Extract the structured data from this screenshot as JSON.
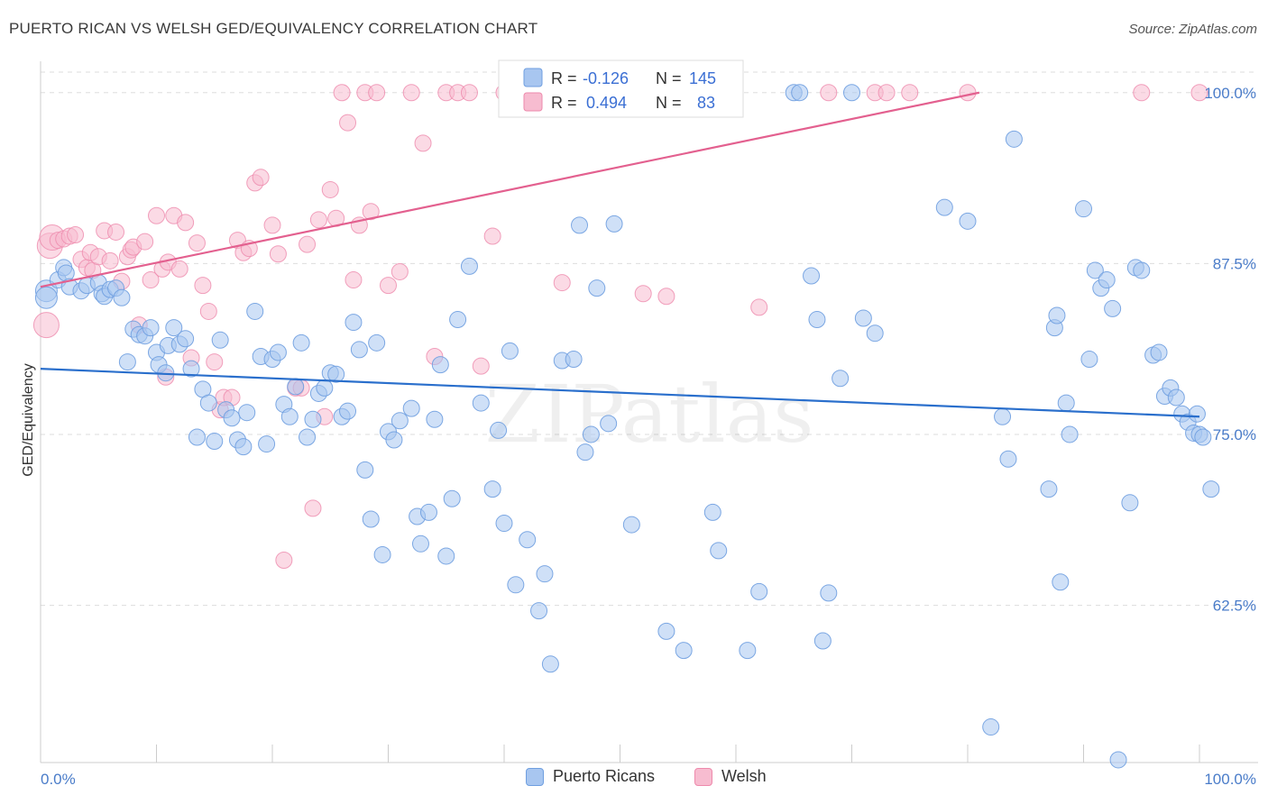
{
  "title": "PUERTO RICAN VS WELSH GED/EQUIVALENCY CORRELATION CHART",
  "source": "Source: ZipAtlas.com",
  "watermark": "ZIPatlas",
  "colors": {
    "blue_fill": "#a8c6f0",
    "blue_stroke": "#6f9fe0",
    "blue_line": "#2a6fcc",
    "pink_fill": "#f7bcd0",
    "pink_stroke": "#ee8aac",
    "pink_line": "#e3608f",
    "tick_text": "#4a7cc9",
    "grid": "#dddddd"
  },
  "legend_box": {
    "rows": [
      {
        "r_label": "R =",
        "r_value": "-0.126",
        "n_label": "N =",
        "n_value": "145"
      },
      {
        "r_label": "R =",
        "r_value": "0.494",
        "n_label": "N =",
        "n_value": "83"
      }
    ]
  },
  "bottom_legend": {
    "series_a": "Puerto Ricans",
    "series_b": "Welsh"
  },
  "chart_data": {
    "type": "scatter",
    "title": "PUERTO RICAN VS WELSH GED/EQUIVALENCY CORRELATION CHART",
    "xlabel": "",
    "ylabel": "GED/Equivalency",
    "xlim": [
      0,
      100
    ],
    "ylim": [
      51,
      101.5
    ],
    "x_tick_labels": [
      "0.0%",
      "100.0%"
    ],
    "y_ticks": [
      62.5,
      75.0,
      87.5,
      100.0
    ],
    "y_tick_labels": [
      "62.5%",
      "75.0%",
      "87.5%",
      "100.0%"
    ],
    "grid": true,
    "legend_position": "top-center",
    "series": [
      {
        "name": "Puerto Ricans",
        "r": -0.126,
        "n": 145,
        "trend": {
          "x": [
            0,
            100
          ],
          "y": [
            79.8,
            76.3
          ]
        },
        "points": [
          [
            0.5,
            85.5
          ],
          [
            0.5,
            85
          ],
          [
            1.5,
            86.3
          ],
          [
            2,
            87.2
          ],
          [
            2.2,
            86.8
          ],
          [
            2.5,
            85.8
          ],
          [
            3.5,
            85.5
          ],
          [
            4,
            85.9
          ],
          [
            5,
            86.1
          ],
          [
            5.3,
            85.3
          ],
          [
            5.5,
            85.1
          ],
          [
            6,
            85.6
          ],
          [
            6.5,
            85.7
          ],
          [
            7,
            85
          ],
          [
            7.5,
            80.3
          ],
          [
            8,
            82.7
          ],
          [
            8.5,
            82.3
          ],
          [
            9,
            82.2
          ],
          [
            9.5,
            82.8
          ],
          [
            10,
            81
          ],
          [
            10.2,
            80.1
          ],
          [
            10.8,
            79.5
          ],
          [
            11,
            81.5
          ],
          [
            11.5,
            82.8
          ],
          [
            12,
            81.6
          ],
          [
            12.5,
            82
          ],
          [
            13,
            79.8
          ],
          [
            13.5,
            74.8
          ],
          [
            14,
            78.3
          ],
          [
            14.5,
            77.3
          ],
          [
            15,
            74.5
          ],
          [
            15.5,
            81.9
          ],
          [
            16,
            76.8
          ],
          [
            16.5,
            76.2
          ],
          [
            17,
            74.6
          ],
          [
            17.5,
            74.1
          ],
          [
            17.8,
            76.6
          ],
          [
            18.5,
            84
          ],
          [
            19,
            80.7
          ],
          [
            19.5,
            74.3
          ],
          [
            20,
            80.5
          ],
          [
            20.5,
            81
          ],
          [
            21,
            77.2
          ],
          [
            21.5,
            76.3
          ],
          [
            22,
            78.5
          ],
          [
            22.5,
            81.7
          ],
          [
            23,
            74.8
          ],
          [
            23.5,
            76.1
          ],
          [
            24,
            78
          ],
          [
            24.5,
            78.4
          ],
          [
            25,
            79.5
          ],
          [
            25.5,
            79.4
          ],
          [
            26,
            76.3
          ],
          [
            26.5,
            76.7
          ],
          [
            27,
            83.2
          ],
          [
            27.5,
            81.2
          ],
          [
            28,
            72.4
          ],
          [
            28.5,
            68.8
          ],
          [
            29,
            81.7
          ],
          [
            29.5,
            66.2
          ],
          [
            30,
            75.2
          ],
          [
            30.5,
            74.6
          ],
          [
            31,
            76
          ],
          [
            32,
            76.9
          ],
          [
            32.5,
            69
          ],
          [
            32.8,
            67
          ],
          [
            33.5,
            69.3
          ],
          [
            34,
            76.1
          ],
          [
            34.5,
            80.1
          ],
          [
            35,
            66.1
          ],
          [
            35.5,
            70.3
          ],
          [
            36,
            83.4
          ],
          [
            37,
            87.3
          ],
          [
            38,
            77.3
          ],
          [
            39,
            71
          ],
          [
            39.5,
            75.3
          ],
          [
            40,
            68.5
          ],
          [
            40.5,
            81.1
          ],
          [
            41,
            64
          ],
          [
            42,
            67.3
          ],
          [
            43,
            62.1
          ],
          [
            43.5,
            64.8
          ],
          [
            44,
            58.2
          ],
          [
            45,
            80.4
          ],
          [
            46,
            80.5
          ],
          [
            46.5,
            90.3
          ],
          [
            47,
            73.7
          ],
          [
            47.5,
            75
          ],
          [
            48,
            85.7
          ],
          [
            49,
            75.8
          ],
          [
            49.5,
            90.4
          ],
          [
            51,
            68.4
          ],
          [
            54,
            60.6
          ],
          [
            55.5,
            59.2
          ],
          [
            57,
            100
          ],
          [
            58,
            69.3
          ],
          [
            58.5,
            66.5
          ],
          [
            61,
            59.2
          ],
          [
            62,
            63.5
          ],
          [
            65,
            100
          ],
          [
            65.5,
            100
          ],
          [
            66.5,
            86.6
          ],
          [
            67,
            83.4
          ],
          [
            67.5,
            59.9
          ],
          [
            68,
            63.4
          ],
          [
            69,
            79.1
          ],
          [
            70,
            100
          ],
          [
            71,
            83.5
          ],
          [
            72,
            82.4
          ],
          [
            78,
            91.6
          ],
          [
            80,
            90.6
          ],
          [
            82,
            53.6
          ],
          [
            83,
            76.3
          ],
          [
            83.5,
            73.2
          ],
          [
            84,
            96.6
          ],
          [
            87,
            71
          ],
          [
            87.5,
            82.8
          ],
          [
            87.7,
            83.7
          ],
          [
            88,
            64.2
          ],
          [
            88.5,
            77.3
          ],
          [
            88.8,
            75
          ],
          [
            90,
            91.5
          ],
          [
            90.5,
            80.5
          ],
          [
            91,
            87
          ],
          [
            91.5,
            85.7
          ],
          [
            92,
            86.3
          ],
          [
            92.5,
            84.2
          ],
          [
            93,
            51.2
          ],
          [
            94,
            70
          ],
          [
            94.5,
            87.2
          ],
          [
            95,
            87
          ],
          [
            96,
            80.8
          ],
          [
            96.5,
            81
          ],
          [
            97,
            77.8
          ],
          [
            97.5,
            78.4
          ],
          [
            98,
            77.7
          ],
          [
            98.5,
            76.5
          ],
          [
            99,
            75.9
          ],
          [
            99.5,
            75.1
          ],
          [
            99.8,
            76.5
          ],
          [
            100,
            75
          ],
          [
            100.3,
            74.8
          ],
          [
            101,
            71
          ]
        ]
      },
      {
        "name": "Welsh",
        "r": 0.494,
        "n": 83,
        "trend": {
          "x": [
            0,
            81
          ],
          "y": [
            85.8,
            100
          ]
        },
        "points": [
          [
            0.5,
            83
          ],
          [
            0.8,
            88.8
          ],
          [
            1,
            89.4
          ],
          [
            1.5,
            89.2
          ],
          [
            2,
            89.3
          ],
          [
            2.5,
            89.5
          ],
          [
            3,
            89.6
          ],
          [
            3.5,
            87.8
          ],
          [
            4,
            87.2
          ],
          [
            4.3,
            88.3
          ],
          [
            4.5,
            87
          ],
          [
            5,
            88
          ],
          [
            5.5,
            89.9
          ],
          [
            6,
            87.7
          ],
          [
            6.5,
            89.8
          ],
          [
            7,
            86.2
          ],
          [
            7.5,
            88
          ],
          [
            7.8,
            88.5
          ],
          [
            8,
            88.7
          ],
          [
            8.5,
            83
          ],
          [
            9,
            89.1
          ],
          [
            9.5,
            86.3
          ],
          [
            10,
            91
          ],
          [
            10.5,
            87.1
          ],
          [
            10.8,
            79.2
          ],
          [
            11,
            87.6
          ],
          [
            11.5,
            91
          ],
          [
            12,
            87.1
          ],
          [
            12.5,
            90.5
          ],
          [
            13,
            80.6
          ],
          [
            13.5,
            89
          ],
          [
            14,
            85.9
          ],
          [
            14.5,
            84
          ],
          [
            15,
            80.3
          ],
          [
            15.5,
            76.8
          ],
          [
            15.8,
            77.7
          ],
          [
            16.5,
            77.7
          ],
          [
            17,
            89.2
          ],
          [
            17.5,
            88.3
          ],
          [
            18,
            88.6
          ],
          [
            18.5,
            93.4
          ],
          [
            19,
            93.8
          ],
          [
            20,
            90.3
          ],
          [
            20.5,
            88.2
          ],
          [
            21,
            65.8
          ],
          [
            22,
            78.4
          ],
          [
            22.5,
            78.4
          ],
          [
            23,
            88.9
          ],
          [
            23.5,
            69.6
          ],
          [
            24,
            90.7
          ],
          [
            24.5,
            76.3
          ],
          [
            25,
            92.9
          ],
          [
            25.5,
            90.8
          ],
          [
            26,
            100
          ],
          [
            26.5,
            97.8
          ],
          [
            27,
            86.3
          ],
          [
            27.5,
            90.3
          ],
          [
            28,
            100
          ],
          [
            28.5,
            91.3
          ],
          [
            29,
            100
          ],
          [
            30,
            85.9
          ],
          [
            31,
            86.9
          ],
          [
            32,
            100
          ],
          [
            33,
            96.3
          ],
          [
            34,
            80.7
          ],
          [
            35,
            100
          ],
          [
            36,
            100
          ],
          [
            37,
            100
          ],
          [
            38,
            80
          ],
          [
            39,
            89.5
          ],
          [
            40,
            100
          ],
          [
            45,
            86.1
          ],
          [
            49,
            100
          ],
          [
            52,
            85.3
          ],
          [
            54,
            85.1
          ],
          [
            62,
            84.3
          ],
          [
            68,
            100
          ],
          [
            72,
            100
          ],
          [
            73,
            100
          ],
          [
            75,
            100
          ],
          [
            80,
            100
          ],
          [
            95,
            100
          ],
          [
            100,
            100
          ]
        ]
      }
    ]
  }
}
